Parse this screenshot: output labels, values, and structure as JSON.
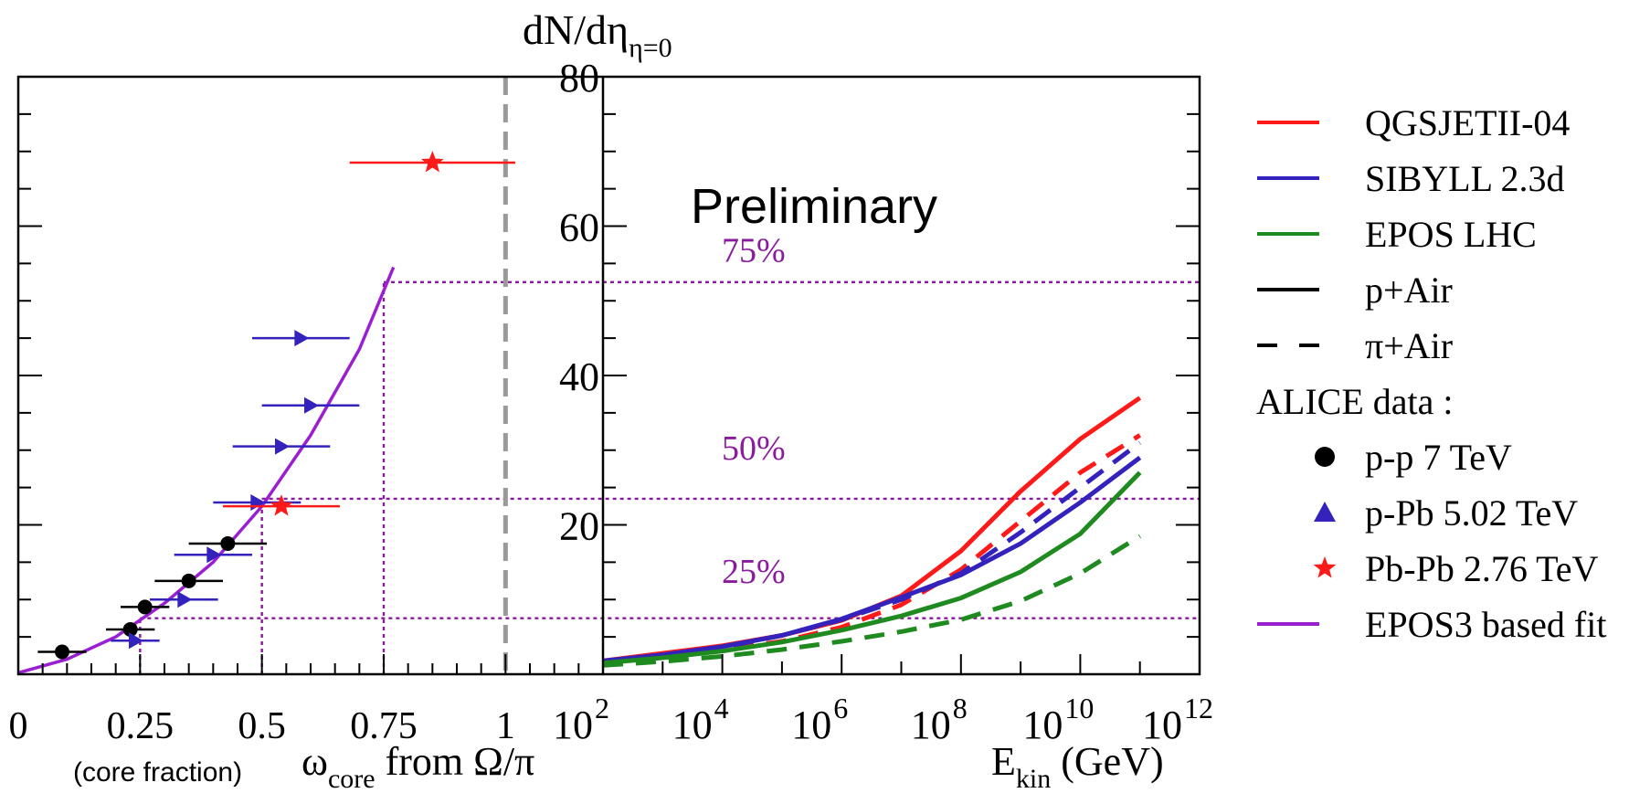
{
  "colors": {
    "qgsjet": "#ff1a1a",
    "sibyll": "#3322bb",
    "epos": "#1f8a1f",
    "fit": "#9a1fd0",
    "guide": "#8a1a9e",
    "axis": "#000000",
    "vline": "#999999"
  },
  "y_axis_label_main": "dN/dη",
  "y_axis_label_sub": "η=0",
  "watermark": "Preliminary",
  "left_panel": {
    "xlabel_note": "(core fraction)",
    "xlabel_omega": "ω",
    "xlabel_omega_sub": "core",
    "xlabel_rest": " from Ω/π",
    "xticks": [
      {
        "v": 0,
        "label": "0"
      },
      {
        "v": 0.25,
        "label": "0.25"
      },
      {
        "v": 0.5,
        "label": "0.5"
      },
      {
        "v": 0.75,
        "label": "0.75"
      },
      {
        "v": 1,
        "label": "1"
      }
    ]
  },
  "right_panel": {
    "xlabel_main": "E",
    "xlabel_sub": "kin",
    "xlabel_rest": " (GeV)",
    "xticks": [
      {
        "exp": 2,
        "base": "10",
        "sup": "2"
      },
      {
        "exp": 4,
        "base": "10",
        "sup": "4"
      },
      {
        "exp": 6,
        "base": "10",
        "sup": "6"
      },
      {
        "exp": 8,
        "base": "10",
        "sup": "8"
      },
      {
        "exp": 10,
        "base": "10",
        "sup": "10"
      },
      {
        "exp": 12,
        "base": "10",
        "sup": "12"
      }
    ]
  },
  "yticks": [
    {
      "v": 20,
      "label": "20"
    },
    {
      "v": 40,
      "label": "40"
    },
    {
      "v": 60,
      "label": "60"
    },
    {
      "v": 80,
      "label": "80"
    }
  ],
  "percent_labels": [
    {
      "v": 12.0,
      "label": "25%"
    },
    {
      "v": 28.5,
      "label": "50%"
    },
    {
      "v": 55.0,
      "label": "75%"
    }
  ],
  "legend": {
    "items": [
      {
        "label": "QGSJETII-04",
        "kind": "line",
        "color": "qgsjet",
        "dash": false
      },
      {
        "label": "SIBYLL 2.3d",
        "kind": "line",
        "color": "sibyll",
        "dash": false
      },
      {
        "label": "EPOS LHC",
        "kind": "line",
        "color": "epos",
        "dash": false
      },
      {
        "label": "p+Air",
        "kind": "line",
        "color": "axis",
        "dash": false
      },
      {
        "label": "π+Air",
        "kind": "line",
        "color": "axis",
        "dash": true
      },
      {
        "label": "ALICE data :",
        "kind": "header"
      },
      {
        "label": "p-p 7 TeV",
        "kind": "circle",
        "color": "axis"
      },
      {
        "label": "p-Pb 5.02 TeV",
        "kind": "triangle",
        "color": "sibyll"
      },
      {
        "label": "Pb-Pb 2.76 TeV",
        "kind": "star",
        "color": "qgsjet"
      },
      {
        "label": "EPOS3 based fit",
        "kind": "line",
        "color": "fit",
        "dash": false
      }
    ]
  },
  "chart_data": [
    {
      "type": "scatter",
      "panel": "left",
      "xlabel": "(core fraction) ω_core from Ω/π",
      "ylabel": "dN/dη_η=0",
      "xlim": [
        0,
        1.2
      ],
      "ylim": [
        0,
        80
      ],
      "vline_x": 1.0,
      "series": [
        {
          "name": "p-p 7 TeV",
          "marker": "circle",
          "color": "axis",
          "points": [
            {
              "x": 0.09,
              "xerr": 0.05,
              "y": 3.0
            },
            {
              "x": 0.23,
              "xerr": 0.05,
              "y": 6.0
            },
            {
              "x": 0.26,
              "xerr": 0.05,
              "y": 9.0
            },
            {
              "x": 0.35,
              "xerr": 0.07,
              "y": 12.5
            },
            {
              "x": 0.43,
              "xerr": 0.08,
              "y": 17.5
            }
          ]
        },
        {
          "name": "p-Pb 5.02 TeV",
          "marker": "triangle-right",
          "color": "sibyll",
          "points": [
            {
              "x": 0.24,
              "xerr": 0.05,
              "y": 4.5
            },
            {
              "x": 0.34,
              "xerr": 0.07,
              "y": 10.0
            },
            {
              "x": 0.4,
              "xerr": 0.08,
              "y": 16.0
            },
            {
              "x": 0.49,
              "xerr": 0.09,
              "y": 23.0
            },
            {
              "x": 0.54,
              "xerr": 0.1,
              "y": 30.5
            },
            {
              "x": 0.6,
              "xerr": 0.1,
              "y": 36.0
            },
            {
              "x": 0.58,
              "xerr": 0.1,
              "y": 45.0
            }
          ]
        },
        {
          "name": "Pb-Pb 2.76 TeV",
          "marker": "star",
          "color": "qgsjet",
          "points": [
            {
              "x": 0.54,
              "xerr": 0.12,
              "y": 22.5
            },
            {
              "x": 0.85,
              "xerr": 0.17,
              "y": 68.5
            }
          ]
        },
        {
          "name": "EPOS3 based fit",
          "kind": "line",
          "color": "fit",
          "points": [
            {
              "x": 0.0,
              "y": 0.2
            },
            {
              "x": 0.1,
              "y": 2.0
            },
            {
              "x": 0.2,
              "y": 5.0
            },
            {
              "x": 0.3,
              "y": 9.5
            },
            {
              "x": 0.4,
              "y": 15.0
            },
            {
              "x": 0.5,
              "y": 22.5
            },
            {
              "x": 0.6,
              "y": 32.0
            },
            {
              "x": 0.7,
              "y": 43.5
            },
            {
              "x": 0.77,
              "y": 54.5
            }
          ]
        }
      ],
      "guides": [
        {
          "x": 0.25,
          "y": 7.5
        },
        {
          "x": 0.5,
          "y": 23.5
        },
        {
          "x": 0.75,
          "y": 52.5
        }
      ]
    },
    {
      "type": "line",
      "panel": "right",
      "xlabel": "E_kin (GeV)",
      "xscale": "log",
      "xlim": [
        100,
        1000000000000
      ],
      "ylim": [
        0,
        80
      ],
      "series": [
        {
          "name": "QGSJETII-04",
          "projectile": "p+Air",
          "color": "qgsjet",
          "dash": false,
          "points": [
            [
              100,
              1.8
            ],
            [
              1000,
              2.8
            ],
            [
              10000,
              3.8
            ],
            [
              100000,
              5.2
            ],
            [
              1000000,
              7.2
            ],
            [
              10000000,
              10.5
            ],
            [
              100000000,
              16.5
            ],
            [
              1000000000,
              24.5
            ],
            [
              10000000000,
              31.5
            ],
            [
              100000000000,
              37.0
            ]
          ]
        },
        {
          "name": "QGSJETII-04",
          "projectile": "π+Air",
          "color": "qgsjet",
          "dash": true,
          "points": [
            [
              100,
              1.6
            ],
            [
              1000,
              2.4
            ],
            [
              10000,
              3.3
            ],
            [
              100000,
              4.4
            ],
            [
              1000000,
              6.3
            ],
            [
              10000000,
              9.3
            ],
            [
              100000000,
              14.0
            ],
            [
              1000000000,
              20.5
            ],
            [
              10000000000,
              27.0
            ],
            [
              100000000000,
              32.0
            ]
          ]
        },
        {
          "name": "SIBYLL 2.3d",
          "projectile": "p+Air",
          "color": "sibyll",
          "dash": false,
          "points": [
            [
              100,
              1.8
            ],
            [
              1000,
              2.6
            ],
            [
              10000,
              3.7
            ],
            [
              100000,
              5.2
            ],
            [
              1000000,
              7.4
            ],
            [
              10000000,
              10.3
            ],
            [
              100000000,
              13.3
            ],
            [
              1000000000,
              17.5
            ],
            [
              10000000000,
              23.0
            ],
            [
              100000000000,
              29.0
            ]
          ]
        },
        {
          "name": "SIBYLL 2.3d",
          "projectile": "π+Air",
          "color": "sibyll",
          "dash": true,
          "points": [
            [
              100,
              1.7
            ],
            [
              1000,
              2.5
            ],
            [
              10000,
              3.6
            ],
            [
              100000,
              5.2
            ],
            [
              1000000,
              7.3
            ],
            [
              10000000,
              10.0
            ],
            [
              100000000,
              13.5
            ],
            [
              1000000000,
              19.0
            ],
            [
              10000000000,
              25.0
            ],
            [
              100000000000,
              31.0
            ]
          ]
        },
        {
          "name": "EPOS LHC",
          "projectile": "p+Air",
          "color": "epos",
          "dash": false,
          "points": [
            [
              100,
              1.5
            ],
            [
              1000,
              2.2
            ],
            [
              10000,
              3.1
            ],
            [
              100000,
              4.3
            ],
            [
              1000000,
              5.9
            ],
            [
              10000000,
              7.8
            ],
            [
              100000000,
              10.2
            ],
            [
              1000000000,
              13.7
            ],
            [
              10000000000,
              18.8
            ],
            [
              100000000000,
              27.0
            ]
          ]
        },
        {
          "name": "EPOS LHC",
          "projectile": "π+Air",
          "color": "epos",
          "dash": true,
          "points": [
            [
              100,
              1.2
            ],
            [
              1000,
              1.7
            ],
            [
              10000,
              2.4
            ],
            [
              100000,
              3.3
            ],
            [
              1000000,
              4.4
            ],
            [
              10000000,
              5.7
            ],
            [
              100000000,
              7.3
            ],
            [
              1000000000,
              9.8
            ],
            [
              10000000000,
              13.5
            ],
            [
              100000000000,
              18.5
            ]
          ]
        }
      ],
      "hguides": [
        7.5,
        23.5,
        52.5
      ]
    }
  ]
}
